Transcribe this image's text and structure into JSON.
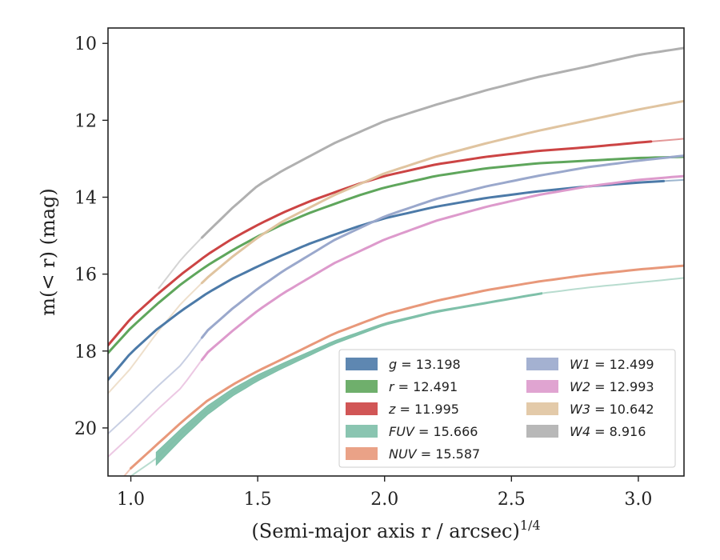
{
  "chart_data": {
    "type": "line",
    "xlabel": "(Semi-major axis r / arcsec)",
    "xlabel_exponent": "1/4",
    "ylabel": "m(< r) (mag)",
    "xlim": [
      0.91,
      3.18
    ],
    "ylim": [
      21.25,
      9.6
    ],
    "y_inverted": true,
    "grid": false,
    "legend_position": "lower right",
    "x_ticks": [
      "1.0",
      "1.5",
      "2.0",
      "2.5",
      "3.0"
    ],
    "y_ticks": [
      "10",
      "12",
      "14",
      "16",
      "18",
      "20"
    ],
    "series": [
      {
        "name": "g = 13.198",
        "label_var": "g",
        "label_value": "= 13.198",
        "color": "#4c7aa8",
        "solid_x": [
          0.91,
          3.1
        ],
        "x": [
          0.91,
          1.0,
          1.1,
          1.2,
          1.3,
          1.4,
          1.5,
          1.6,
          1.7,
          1.8,
          1.9,
          2.0,
          2.2,
          2.4,
          2.6,
          2.8,
          3.0,
          3.18
        ],
        "y": [
          18.75,
          18.05,
          17.45,
          16.95,
          16.5,
          16.12,
          15.8,
          15.5,
          15.22,
          14.98,
          14.75,
          14.55,
          14.25,
          14.02,
          13.85,
          13.72,
          13.62,
          13.55
        ]
      },
      {
        "name": "r = 12.491",
        "label_var": "r",
        "label_value": "= 12.491",
        "color": "#5fa65c",
        "solid_x": [
          0.91,
          3.18
        ],
        "x": [
          0.91,
          1.0,
          1.1,
          1.2,
          1.3,
          1.4,
          1.5,
          1.6,
          1.7,
          1.8,
          1.9,
          2.0,
          2.2,
          2.4,
          2.6,
          2.8,
          3.0,
          3.18
        ],
        "y": [
          18.05,
          17.4,
          16.8,
          16.25,
          15.78,
          15.38,
          15.02,
          14.7,
          14.42,
          14.18,
          13.95,
          13.75,
          13.45,
          13.25,
          13.12,
          13.05,
          12.98,
          12.95
        ]
      },
      {
        "name": "z = 11.995",
        "label_var": "z",
        "label_value": "= 11.995",
        "color": "#cc4444",
        "solid_x": [
          0.91,
          3.05
        ],
        "x": [
          0.91,
          1.0,
          1.1,
          1.2,
          1.3,
          1.4,
          1.5,
          1.6,
          1.7,
          1.8,
          1.9,
          2.0,
          2.2,
          2.4,
          2.6,
          2.8,
          3.0,
          3.18
        ],
        "y": [
          17.85,
          17.15,
          16.55,
          16.0,
          15.5,
          15.08,
          14.72,
          14.4,
          14.12,
          13.88,
          13.65,
          13.45,
          13.15,
          12.95,
          12.8,
          12.7,
          12.58,
          12.48
        ]
      },
      {
        "name": "FUV = 15.666",
        "label_var": "FUV",
        "label_value": "= 15.666",
        "color": "#7dbfa8",
        "solid_x": [
          1.1,
          2.62
        ],
        "band": true,
        "x": [
          0.91,
          1.0,
          1.1,
          1.2,
          1.3,
          1.4,
          1.5,
          1.6,
          1.8,
          2.0,
          2.2,
          2.4,
          2.62,
          2.8,
          3.0,
          3.18
        ],
        "y": [
          21.8,
          21.25,
          20.8,
          20.15,
          19.55,
          19.08,
          18.7,
          18.38,
          17.78,
          17.3,
          16.98,
          16.75,
          16.5,
          16.35,
          16.22,
          16.1
        ]
      },
      {
        "name": "NUV = 15.587",
        "label_var": "NUV",
        "label_value": "= 15.587",
        "color": "#e8987a",
        "solid_x": [
          1.0,
          3.18
        ],
        "x": [
          0.91,
          1.0,
          1.1,
          1.2,
          1.3,
          1.4,
          1.5,
          1.6,
          1.8,
          2.0,
          2.2,
          2.4,
          2.6,
          2.8,
          3.0,
          3.18
        ],
        "y": [
          21.75,
          21.05,
          20.45,
          19.85,
          19.3,
          18.88,
          18.52,
          18.2,
          17.55,
          17.05,
          16.7,
          16.42,
          16.2,
          16.02,
          15.88,
          15.78
        ]
      },
      {
        "name": "W1 = 12.499",
        "label_var": "W1",
        "label_value": "= 12.499",
        "color": "#9aa8cc",
        "solid_x": [
          1.28,
          3.18
        ],
        "x": [
          0.91,
          1.0,
          1.1,
          1.2,
          1.3,
          1.4,
          1.5,
          1.6,
          1.8,
          2.0,
          2.2,
          2.4,
          2.6,
          2.8,
          3.0,
          3.18
        ],
        "y": [
          20.15,
          19.6,
          18.95,
          18.35,
          17.48,
          16.9,
          16.38,
          15.92,
          15.12,
          14.5,
          14.05,
          13.72,
          13.45,
          13.22,
          13.05,
          12.92
        ]
      },
      {
        "name": "W2 = 12.993",
        "label_var": "W2",
        "label_value": "= 12.993",
        "color": "#dd9acc",
        "solid_x": [
          1.28,
          3.18
        ],
        "x": [
          0.91,
          1.0,
          1.1,
          1.2,
          1.3,
          1.4,
          1.5,
          1.6,
          1.8,
          2.0,
          2.2,
          2.4,
          2.6,
          2.8,
          3.0,
          3.18
        ],
        "y": [
          20.75,
          20.2,
          19.55,
          18.95,
          18.05,
          17.48,
          16.95,
          16.5,
          15.72,
          15.1,
          14.62,
          14.25,
          13.95,
          13.72,
          13.55,
          13.45
        ]
      },
      {
        "name": "W3 = 10.642",
        "label_var": "W3",
        "label_value": "= 10.642",
        "color": "#e0c4a0",
        "solid_x": [
          1.28,
          3.18
        ],
        "x": [
          0.91,
          1.0,
          1.1,
          1.2,
          1.3,
          1.4,
          1.5,
          1.6,
          1.8,
          2.0,
          2.2,
          2.4,
          2.6,
          2.8,
          3.0,
          3.18
        ],
        "y": [
          19.1,
          18.45,
          17.55,
          16.75,
          16.1,
          15.55,
          15.05,
          14.62,
          13.95,
          13.38,
          12.95,
          12.6,
          12.28,
          12.0,
          11.72,
          11.5
        ]
      },
      {
        "name": "W4 = 8.916",
        "label_var": "W4",
        "label_value": "= 8.916",
        "color": "#b0b0b0",
        "solid_x": [
          1.28,
          3.18
        ],
        "x": [
          1.1,
          1.2,
          1.28,
          1.4,
          1.5,
          1.6,
          1.8,
          2.0,
          2.2,
          2.4,
          2.6,
          2.8,
          3.0,
          3.18
        ],
        "y": [
          16.45,
          15.6,
          15.05,
          14.28,
          13.7,
          13.3,
          12.6,
          12.02,
          11.6,
          11.22,
          10.88,
          10.6,
          10.3,
          10.12
        ]
      }
    ]
  }
}
